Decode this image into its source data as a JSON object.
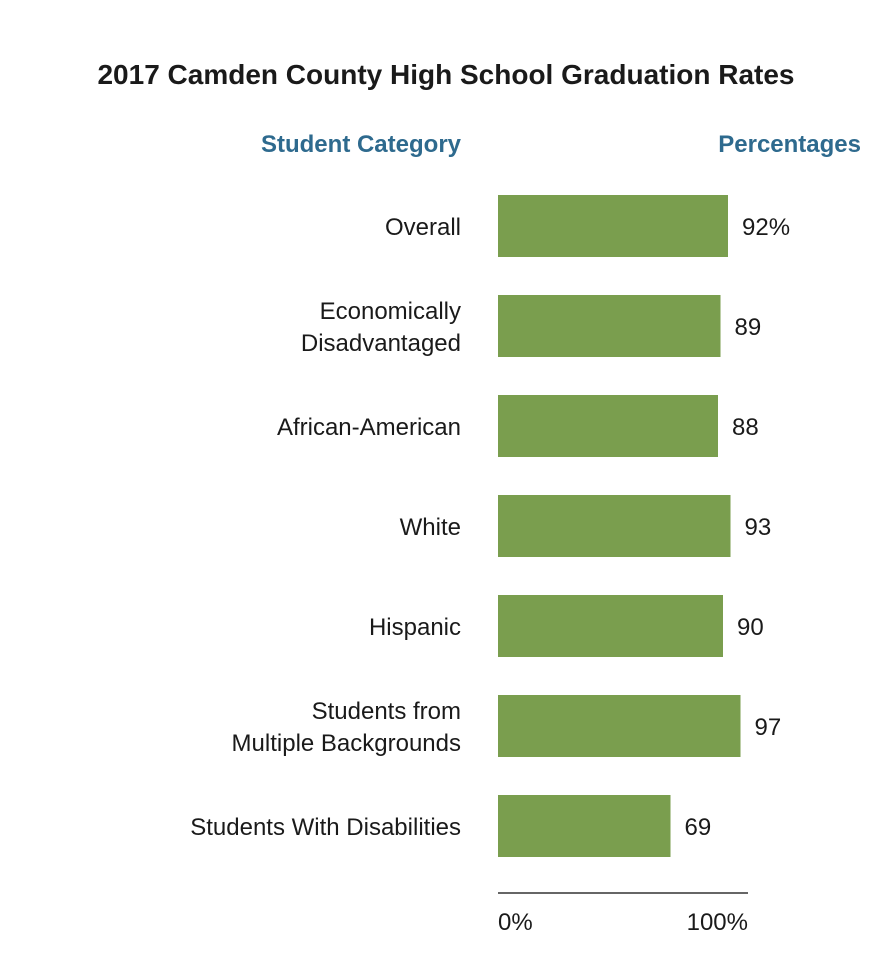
{
  "colors": {
    "bar": "#7a9e4e",
    "header": "#2e6a8e",
    "text": "#1a1a1a",
    "axis": "#333333"
  },
  "chart_data": {
    "type": "bar",
    "orientation": "horizontal",
    "title": "2017 Camden County High School Graduation Rates",
    "category_header": "Student Category",
    "value_header": "Percentages",
    "categories": [
      [
        "Overall"
      ],
      [
        "Economically",
        "Disadvantaged"
      ],
      [
        "African-American"
      ],
      [
        "White"
      ],
      [
        "Hispanic"
      ],
      [
        "Students from",
        "Multiple Backgrounds"
      ],
      [
        "Students With Disabilities"
      ]
    ],
    "values": [
      92,
      89,
      88,
      93,
      90,
      97,
      69
    ],
    "value_labels": [
      "92%",
      "89",
      "88",
      "93",
      "90",
      "97",
      "69"
    ],
    "xlim": [
      0,
      100
    ],
    "x_tick_labels": [
      "0%",
      "100%"
    ],
    "grid": false,
    "legend": "none"
  }
}
